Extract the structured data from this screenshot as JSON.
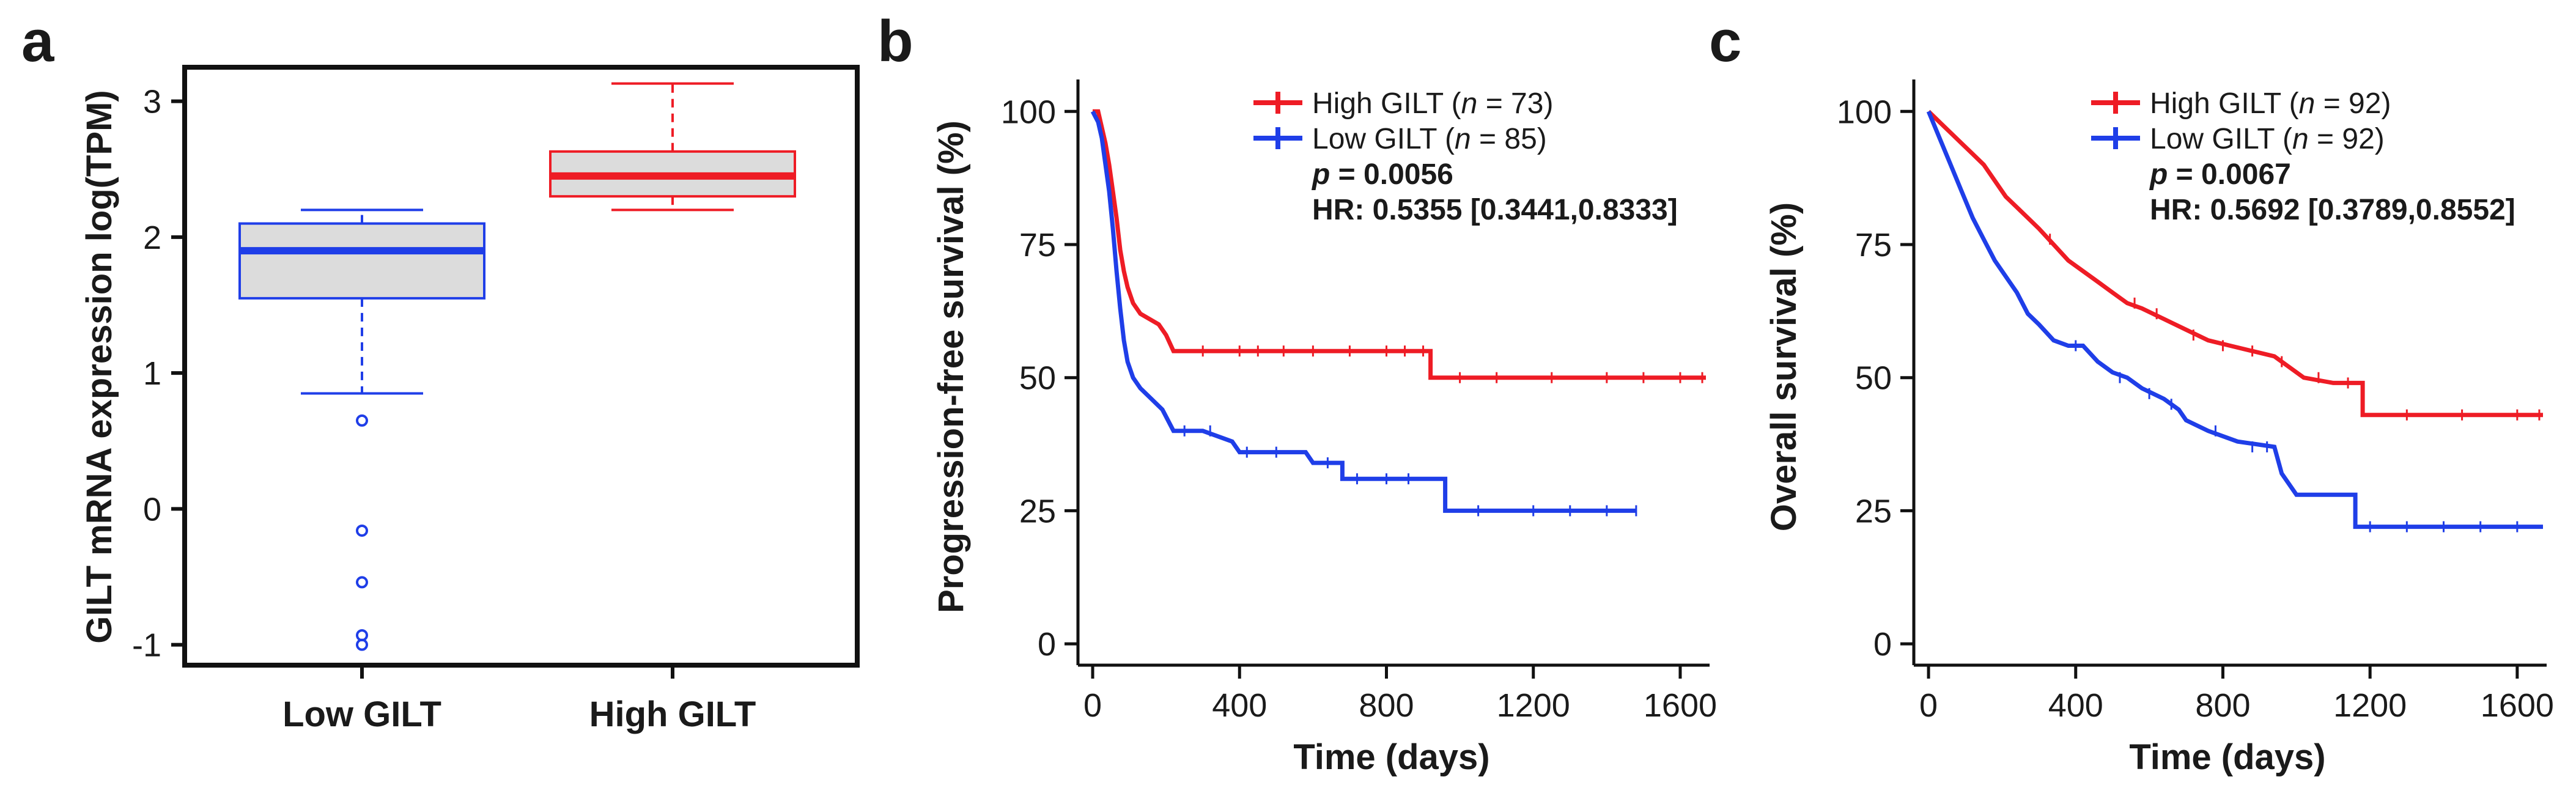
{
  "colors": {
    "high": "#ee1c25",
    "low": "#1f3ee8",
    "box_fill": "#dcdcdc",
    "axis": "#111111"
  },
  "chart_data": [
    {
      "type": "box",
      "panel": "a",
      "ylabel": "GILT mRNA expression log(TPM)",
      "ylim": [
        -1.15,
        3.25
      ],
      "yticks": [
        "-1",
        "0",
        "1",
        "2",
        "3"
      ],
      "categories": [
        "Low GILT",
        "High GILT"
      ],
      "boxes": [
        {
          "name": "Low GILT",
          "color_key": "low",
          "min": 0.85,
          "q1": 1.55,
          "median": 1.9,
          "q3": 2.1,
          "max": 2.2,
          "outliers": [
            0.65,
            -0.16,
            -0.54,
            -0.93,
            -1.0
          ]
        },
        {
          "name": "High GILT",
          "color_key": "high",
          "min": 2.2,
          "q1": 2.3,
          "median": 2.45,
          "q3": 2.63,
          "max": 3.13,
          "outliers": []
        }
      ]
    },
    {
      "type": "line",
      "panel": "b",
      "xlabel": "Time (days)",
      "ylabel": "Progression-free survival (%)",
      "xlim": [
        -40,
        1680
      ],
      "ylim": [
        -4,
        106
      ],
      "xticks": [
        "0",
        "400",
        "800",
        "1200",
        "1600"
      ],
      "yticks": [
        "0",
        "25",
        "50",
        "75",
        "100"
      ],
      "legend": [
        {
          "label": "High GILT",
          "n_text": "n",
          "count": "= 73)",
          "color_key": "high"
        },
        {
          "label": "Low GILT",
          "n_text": "n",
          "count": "= 85)",
          "color_key": "low"
        }
      ],
      "p_symbol": "p",
      "p_value": "= 0.0056",
      "hr_text": "HR: 0.5355 [0.3441,0.8333]",
      "series": [
        {
          "name": "High GILT",
          "color_key": "high",
          "points": [
            [
              0,
              100
            ],
            [
              15,
              100
            ],
            [
              25,
              97
            ],
            [
              35,
              94
            ],
            [
              45,
              90
            ],
            [
              55,
              85
            ],
            [
              65,
              80
            ],
            [
              75,
              74
            ],
            [
              85,
              70
            ],
            [
              95,
              67
            ],
            [
              110,
              64
            ],
            [
              130,
              62
            ],
            [
              180,
              60
            ],
            [
              200,
              58
            ],
            [
              220,
              55
            ],
            [
              300,
              55
            ],
            [
              920,
              55
            ],
            [
              920,
              50
            ],
            [
              1670,
              50
            ]
          ],
          "censors": [
            [
              300,
              55
            ],
            [
              400,
              55
            ],
            [
              450,
              55
            ],
            [
              520,
              55
            ],
            [
              600,
              55
            ],
            [
              700,
              55
            ],
            [
              800,
              55
            ],
            [
              850,
              55
            ],
            [
              900,
              55
            ],
            [
              1000,
              50
            ],
            [
              1100,
              50
            ],
            [
              1250,
              50
            ],
            [
              1400,
              50
            ],
            [
              1500,
              50
            ],
            [
              1600,
              50
            ],
            [
              1660,
              50
            ]
          ]
        },
        {
          "name": "Low GILT",
          "color_key": "low",
          "points": [
            [
              0,
              100
            ],
            [
              15,
              98
            ],
            [
              25,
              95
            ],
            [
              35,
              90
            ],
            [
              45,
              85
            ],
            [
              55,
              78
            ],
            [
              65,
              70
            ],
            [
              75,
              63
            ],
            [
              85,
              57
            ],
            [
              95,
              53
            ],
            [
              110,
              50
            ],
            [
              130,
              48
            ],
            [
              160,
              46
            ],
            [
              190,
              44
            ],
            [
              220,
              40
            ],
            [
              300,
              40
            ],
            [
              380,
              38
            ],
            [
              400,
              36
            ],
            [
              580,
              36
            ],
            [
              600,
              34
            ],
            [
              680,
              34
            ],
            [
              680,
              31
            ],
            [
              900,
              31
            ],
            [
              960,
              31
            ],
            [
              960,
              25
            ],
            [
              1480,
              25
            ]
          ],
          "censors": [
            [
              250,
              40
            ],
            [
              320,
              40
            ],
            [
              420,
              36
            ],
            [
              500,
              36
            ],
            [
              640,
              34
            ],
            [
              720,
              31
            ],
            [
              800,
              31
            ],
            [
              860,
              31
            ],
            [
              1050,
              25
            ],
            [
              1200,
              25
            ],
            [
              1300,
              25
            ],
            [
              1400,
              25
            ],
            [
              1480,
              25
            ]
          ]
        }
      ]
    },
    {
      "type": "line",
      "panel": "c",
      "xlabel": "Time (days)",
      "ylabel": "Overall survival (%)",
      "xlim": [
        -40,
        1680
      ],
      "ylim": [
        -4,
        106
      ],
      "xticks": [
        "0",
        "400",
        "800",
        "1200",
        "1600"
      ],
      "yticks": [
        "0",
        "25",
        "50",
        "75",
        "100"
      ],
      "legend": [
        {
          "label": "High GILT",
          "n_text": "n",
          "count": "= 92)",
          "color_key": "high"
        },
        {
          "label": "Low GILT",
          "n_text": "n",
          "count": "= 92)",
          "color_key": "low"
        }
      ],
      "p_symbol": "p",
      "p_value": "= 0.0067",
      "hr_text": "HR: 0.5692 [0.3789,0.8552]",
      "series": [
        {
          "name": "High GILT",
          "color_key": "high",
          "points": [
            [
              0,
              100
            ],
            [
              30,
              98
            ],
            [
              60,
              96
            ],
            [
              90,
              94
            ],
            [
              120,
              92
            ],
            [
              150,
              90
            ],
            [
              180,
              87
            ],
            [
              210,
              84
            ],
            [
              240,
              82
            ],
            [
              270,
              80
            ],
            [
              300,
              78
            ],
            [
              340,
              75
            ],
            [
              380,
              72
            ],
            [
              420,
              70
            ],
            [
              460,
              68
            ],
            [
              500,
              66
            ],
            [
              540,
              64
            ],
            [
              580,
              63
            ],
            [
              640,
              61
            ],
            [
              700,
              59
            ],
            [
              760,
              57
            ],
            [
              820,
              56
            ],
            [
              880,
              55
            ],
            [
              940,
              54
            ],
            [
              980,
              52
            ],
            [
              1020,
              50
            ],
            [
              1100,
              49
            ],
            [
              1180,
              49
            ],
            [
              1180,
              43
            ],
            [
              1670,
              43
            ]
          ],
          "censors": [
            [
              330,
              76
            ],
            [
              560,
              64
            ],
            [
              620,
              62
            ],
            [
              720,
              58
            ],
            [
              800,
              56
            ],
            [
              880,
              55
            ],
            [
              960,
              53
            ],
            [
              1060,
              50
            ],
            [
              1140,
              49
            ],
            [
              1300,
              43
            ],
            [
              1450,
              43
            ],
            [
              1600,
              43
            ],
            [
              1660,
              43
            ]
          ]
        },
        {
          "name": "Low GILT",
          "color_key": "low",
          "points": [
            [
              0,
              100
            ],
            [
              30,
              95
            ],
            [
              60,
              90
            ],
            [
              90,
              85
            ],
            [
              120,
              80
            ],
            [
              150,
              76
            ],
            [
              180,
              72
            ],
            [
              210,
              69
            ],
            [
              240,
              66
            ],
            [
              270,
              62
            ],
            [
              300,
              60
            ],
            [
              340,
              57
            ],
            [
              380,
              56
            ],
            [
              420,
              56
            ],
            [
              460,
              53
            ],
            [
              500,
              51
            ],
            [
              540,
              50
            ],
            [
              580,
              48
            ],
            [
              640,
              46
            ],
            [
              680,
              44
            ],
            [
              700,
              42
            ],
            [
              760,
              40
            ],
            [
              840,
              38
            ],
            [
              940,
              37
            ],
            [
              960,
              32
            ],
            [
              1000,
              28
            ],
            [
              1160,
              28
            ],
            [
              1160,
              22
            ],
            [
              1670,
              22
            ]
          ],
          "censors": [
            [
              400,
              56
            ],
            [
              520,
              50
            ],
            [
              600,
              47
            ],
            [
              660,
              45
            ],
            [
              780,
              40
            ],
            [
              880,
              37
            ],
            [
              920,
              37
            ],
            [
              1200,
              22
            ],
            [
              1300,
              22
            ],
            [
              1400,
              22
            ],
            [
              1500,
              22
            ],
            [
              1600,
              22
            ]
          ]
        }
      ]
    }
  ]
}
